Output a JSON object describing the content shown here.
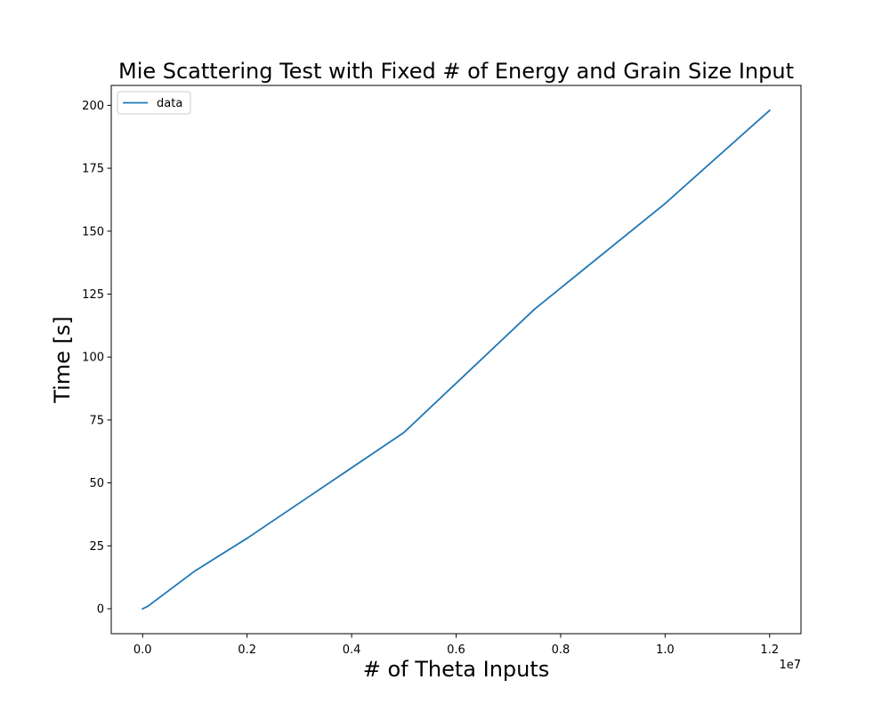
{
  "chart_data": {
    "type": "line",
    "title": "Mie Scattering Test with Fixed # of Energy and Grain Size Input",
    "xlabel": "# of Theta Inputs",
    "ylabel": "Time [s]",
    "x_offset_label": "1e7",
    "xlim": [
      -0.06,
      1.26
    ],
    "ylim": [
      -9.9,
      207.9
    ],
    "xticks": [
      0.0,
      0.2,
      0.4,
      0.6,
      0.8,
      1.0,
      1.2
    ],
    "xtick_labels": [
      "0.0",
      "0.2",
      "0.4",
      "0.6",
      "0.8",
      "1.0",
      "1.2"
    ],
    "yticks": [
      0,
      25,
      50,
      75,
      100,
      125,
      150,
      175,
      200
    ],
    "ytick_labels": [
      "0",
      "25",
      "50",
      "75",
      "100",
      "125",
      "150",
      "175",
      "200"
    ],
    "grid": false,
    "legend_position": "upper-left",
    "series": [
      {
        "name": "data",
        "color": "#1f77b4",
        "x": [
          0.0,
          0.01,
          0.1,
          0.2,
          0.5,
          0.75,
          1.0,
          1.2
        ],
        "y": [
          0,
          1,
          15,
          28,
          70,
          119,
          161,
          198
        ]
      }
    ]
  }
}
